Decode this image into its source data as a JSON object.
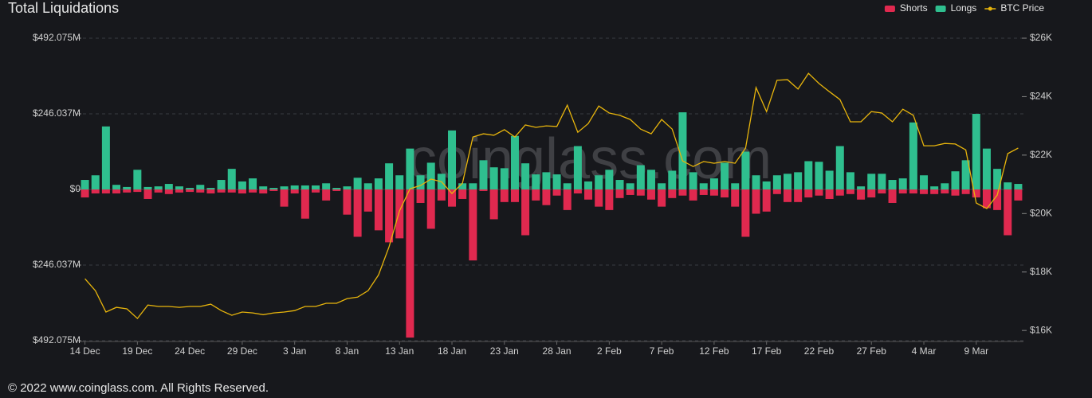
{
  "chart_data": {
    "type": "bar",
    "title": "Total Liquidations",
    "watermark": "coinglass.com",
    "categories": [
      "14 Dec",
      null,
      null,
      null,
      null,
      "19 Dec",
      null,
      null,
      null,
      null,
      "24 Dec",
      null,
      null,
      null,
      null,
      "29 Dec",
      null,
      null,
      null,
      null,
      "3 Jan",
      null,
      null,
      null,
      null,
      "8 Jan",
      null,
      null,
      null,
      null,
      "13 Jan",
      null,
      null,
      null,
      null,
      "18 Jan",
      null,
      null,
      null,
      null,
      "23 Jan",
      null,
      null,
      null,
      null,
      "28 Jan",
      null,
      null,
      null,
      null,
      "2 Feb",
      null,
      null,
      null,
      null,
      "7 Feb",
      null,
      null,
      null,
      null,
      "12 Feb",
      null,
      null,
      null,
      null,
      "17 Feb",
      null,
      null,
      null,
      null,
      "22 Feb",
      null,
      null,
      null,
      null,
      "27 Feb",
      null,
      null,
      null,
      null,
      "4 Mar",
      null,
      null,
      null,
      null,
      "9 Mar",
      null,
      null,
      null,
      null
    ],
    "series": [
      {
        "name": "Shorts",
        "color": "#e0294f",
        "values": [
          -26,
          -13,
          -13,
          -13,
          -10,
          -8,
          -31,
          -10,
          -15,
          -10,
          -8,
          -10,
          -13,
          -10,
          -10,
          -13,
          -10,
          -13,
          -5,
          -56,
          -13,
          -95,
          -10,
          -36,
          -5,
          -82,
          -154,
          -72,
          -133,
          -172,
          -159,
          -482,
          -44,
          -128,
          -36,
          -56,
          -31,
          -231,
          -5,
          -97,
          -41,
          -41,
          -149,
          -36,
          -51,
          -20,
          -67,
          -13,
          -33,
          -56,
          -67,
          -28,
          -18,
          -20,
          -33,
          -56,
          -28,
          -20,
          -36,
          -18,
          -20,
          -26,
          -56,
          -154,
          -79,
          -72,
          -15,
          -41,
          -41,
          -26,
          -20,
          -31,
          -20,
          -15,
          -33,
          -26,
          -13,
          -44,
          -13,
          -13,
          -15,
          -15,
          -13,
          -20,
          -15,
          -26,
          -61,
          -67,
          -149,
          -36
        ]
      },
      {
        "name": "Longs",
        "color": "#2fbf8f",
        "values": [
          31,
          46,
          205,
          15,
          8,
          64,
          8,
          10,
          18,
          10,
          5,
          15,
          5,
          31,
          67,
          26,
          36,
          10,
          5,
          10,
          13,
          13,
          13,
          20,
          5,
          10,
          38,
          20,
          36,
          85,
          46,
          133,
          46,
          87,
          51,
          192,
          20,
          20,
          95,
          72,
          69,
          174,
          85,
          49,
          56,
          49,
          20,
          141,
          26,
          46,
          64,
          31,
          20,
          79,
          64,
          20,
          61,
          251,
          56,
          20,
          36,
          87,
          20,
          123,
          46,
          26,
          46,
          51,
          56,
          92,
          90,
          61,
          141,
          56,
          10,
          51,
          51,
          31,
          36,
          218,
          46,
          10,
          20,
          59,
          95,
          246,
          133,
          67,
          23,
          18
        ]
      },
      {
        "name": "BTC Price",
        "color": "#e8b50c",
        "axis": "y2",
        "type": "line",
        "values": [
          17770,
          17360,
          16630,
          16790,
          16740,
          16410,
          16870,
          16820,
          16820,
          16790,
          16820,
          16820,
          16900,
          16680,
          16520,
          16630,
          16600,
          16540,
          16600,
          16630,
          16680,
          16820,
          16820,
          16930,
          16930,
          17090,
          17140,
          17360,
          17900,
          18860,
          20090,
          20850,
          20960,
          21180,
          21090,
          20690,
          21040,
          22620,
          22730,
          22680,
          22870,
          22620,
          23030,
          22950,
          23000,
          22980,
          23710,
          22780,
          23080,
          23680,
          23440,
          23360,
          23220,
          22890,
          22730,
          23220,
          22890,
          21800,
          21610,
          21780,
          21720,
          21780,
          21720,
          22240,
          24310,
          23490,
          24560,
          24580,
          24260,
          24800,
          24450,
          24170,
          23900,
          23140,
          23140,
          23490,
          23440,
          23140,
          23570,
          23360,
          22320,
          22320,
          22400,
          22380,
          22180,
          20360,
          20170,
          20630,
          22050,
          22240
        ]
      }
    ],
    "ylim": [
      -492.075,
      492.075
    ],
    "yticks": [
      {
        "value": 492.075,
        "label": "$492.075M"
      },
      {
        "value": 246.037,
        "label": "$246.037M"
      },
      {
        "value": 0,
        "label": "$0"
      },
      {
        "value": -246.037,
        "label": "$246.037M"
      },
      {
        "value": -492.075,
        "label": "$492.075M"
      }
    ],
    "y2lim": [
      15650,
      26000
    ],
    "y2ticks": [
      {
        "value": 26000,
        "label": "$26K"
      },
      {
        "value": 24000,
        "label": "$24K"
      },
      {
        "value": 22000,
        "label": "$22K"
      },
      {
        "value": 20000,
        "label": "$20K"
      },
      {
        "value": 18000,
        "label": "$18K"
      },
      {
        "value": 16000,
        "label": "$16K"
      }
    ],
    "grid": true,
    "legend": "top-right"
  },
  "footer": "© 2022 www.coinglass.com. All Rights Reserved."
}
